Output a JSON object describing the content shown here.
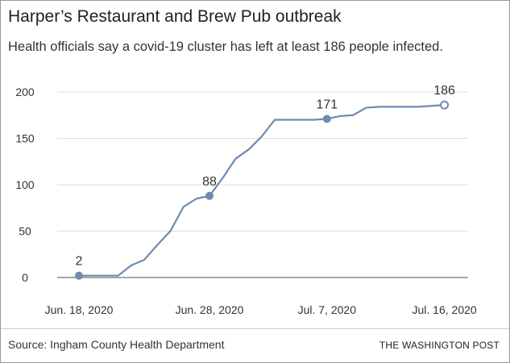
{
  "title": "Harper’s Restaurant and Brew Pub outbreak",
  "subtitle": "Health officials say a covid-19 cluster has left at least 186 people infected.",
  "source": "Source: Ingham County Health Department",
  "credit": "THE WASHINGTON POST",
  "chart_data": {
    "type": "line",
    "color": "#6f8bb0",
    "ylim": [
      0,
      200
    ],
    "yticks": [
      0,
      50,
      100,
      150,
      200
    ],
    "xticks": [
      {
        "day": 0,
        "label": "Jun. 18, 2020"
      },
      {
        "day": 10,
        "label": "Jun. 28, 2020"
      },
      {
        "day": 19,
        "label": "Jul. 7, 2020"
      },
      {
        "day": 28,
        "label": "Jul. 16, 2020"
      }
    ],
    "grid": true,
    "dates": [
      "Jun. 18",
      "Jun. 19",
      "Jun. 20",
      "Jun. 21",
      "Jun. 22",
      "Jun. 23",
      "Jun. 24",
      "Jun. 25",
      "Jun. 26",
      "Jun. 27",
      "Jun. 28",
      "Jun. 29",
      "Jun. 30",
      "Jul. 1",
      "Jul. 2",
      "Jul. 3",
      "Jul. 4",
      "Jul. 5",
      "Jul. 6",
      "Jul. 7",
      "Jul. 8",
      "Jul. 9",
      "Jul. 10",
      "Jul. 11",
      "Jul. 12",
      "Jul. 13",
      "Jul. 14",
      "Jul. 15",
      "Jul. 16"
    ],
    "values": [
      2,
      2,
      2,
      2,
      13,
      19,
      35,
      50,
      76,
      85,
      88,
      107,
      128,
      138,
      152,
      170,
      170,
      170,
      170,
      171,
      174,
      175,
      183,
      184,
      184,
      184,
      184,
      185,
      186
    ],
    "annotations": [
      {
        "day": 0,
        "label": "2"
      },
      {
        "day": 10,
        "label": "88"
      },
      {
        "day": 19,
        "label": "171"
      },
      {
        "day": 28,
        "label": "186",
        "hollow": true
      }
    ]
  }
}
